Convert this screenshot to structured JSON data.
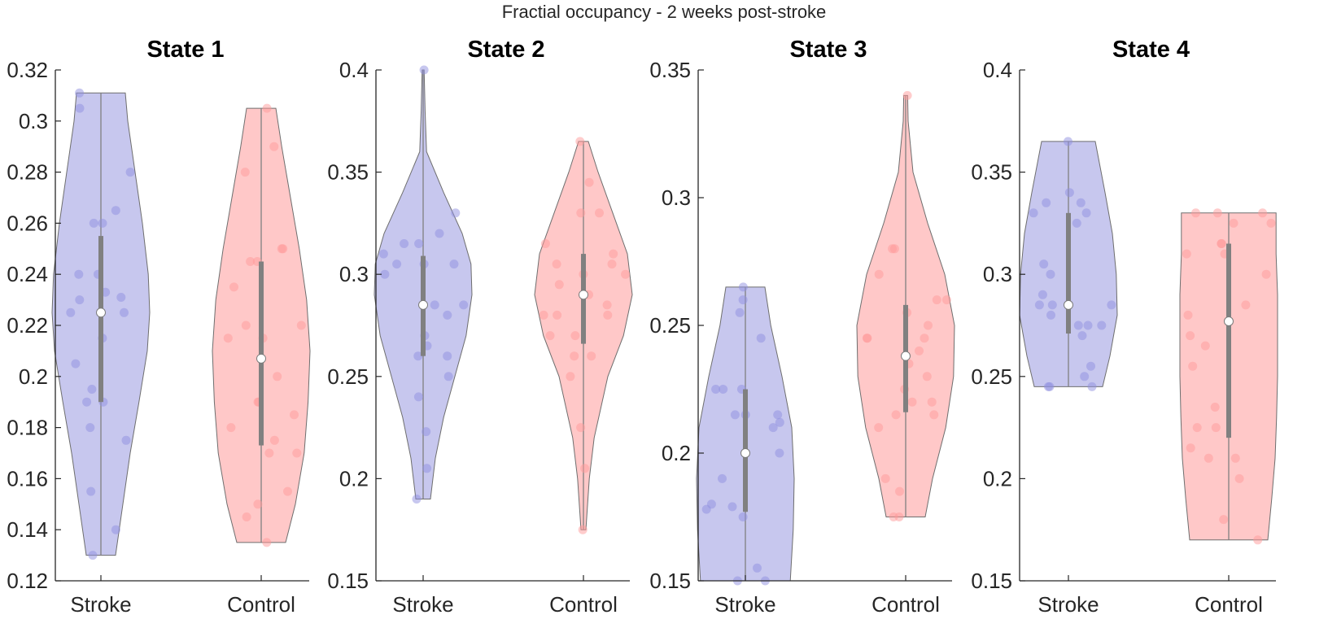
{
  "figure_title": "Fractial occupancy - 2 weeks post-stroke",
  "colors": {
    "stroke_fill": "#c7c7ee",
    "stroke_points": "#8f8fe0",
    "control_fill": "#ffc8c8",
    "control_points": "#ff9a9a",
    "box": "#808080",
    "median": "#ffffff",
    "axis": "#262626"
  },
  "chart_data": [
    {
      "type": "violin",
      "title": "State 1",
      "categories": [
        "Stroke",
        "Control"
      ],
      "ylim": [
        0.12,
        0.32
      ],
      "yticks": [
        "0.12",
        "0.14",
        "0.16",
        "0.18",
        "0.2",
        "0.22",
        "0.24",
        "0.26",
        "0.28",
        "0.3",
        "0.32"
      ],
      "groups": [
        {
          "name": "Stroke",
          "median": 0.225,
          "q1": 0.19,
          "q3": 0.255,
          "min": 0.13,
          "max": 0.311,
          "points": [
            0.311,
            0.305,
            0.28,
            0.265,
            0.26,
            0.26,
            0.24,
            0.24,
            0.233,
            0.231,
            0.23,
            0.225,
            0.225,
            0.215,
            0.205,
            0.195,
            0.19,
            0.19,
            0.18,
            0.175,
            0.155,
            0.14,
            0.13
          ],
          "density": [
            [
              0.13,
              0.3
            ],
            [
              0.15,
              0.45
            ],
            [
              0.17,
              0.6
            ],
            [
              0.19,
              0.78
            ],
            [
              0.21,
              0.95
            ],
            [
              0.225,
              1.0
            ],
            [
              0.24,
              0.97
            ],
            [
              0.26,
              0.85
            ],
            [
              0.28,
              0.7
            ],
            [
              0.3,
              0.55
            ],
            [
              0.311,
              0.5
            ]
          ]
        },
        {
          "name": "Control",
          "median": 0.207,
          "q1": 0.173,
          "q3": 0.245,
          "min": 0.135,
          "max": 0.305,
          "points": [
            0.305,
            0.29,
            0.28,
            0.25,
            0.25,
            0.245,
            0.245,
            0.235,
            0.22,
            0.22,
            0.215,
            0.215,
            0.2,
            0.19,
            0.19,
            0.185,
            0.18,
            0.175,
            0.17,
            0.17,
            0.155,
            0.15,
            0.145,
            0.135
          ],
          "density": [
            [
              0.135,
              0.5
            ],
            [
              0.15,
              0.7
            ],
            [
              0.17,
              0.88
            ],
            [
              0.19,
              0.96
            ],
            [
              0.21,
              1.0
            ],
            [
              0.23,
              0.93
            ],
            [
              0.25,
              0.78
            ],
            [
              0.27,
              0.6
            ],
            [
              0.29,
              0.42
            ],
            [
              0.305,
              0.3
            ]
          ]
        }
      ]
    },
    {
      "type": "violin",
      "title": "State 2",
      "categories": [
        "Stroke",
        "Control"
      ],
      "ylim": [
        0.15,
        0.4
      ],
      "yticks": [
        "0.15",
        "0.2",
        "0.25",
        "0.3",
        "0.35",
        "0.4"
      ],
      "groups": [
        {
          "name": "Stroke",
          "median": 0.285,
          "q1": 0.26,
          "q3": 0.309,
          "min": 0.19,
          "max": 0.4,
          "points": [
            0.4,
            0.33,
            0.32,
            0.315,
            0.315,
            0.31,
            0.305,
            0.305,
            0.305,
            0.3,
            0.285,
            0.285,
            0.28,
            0.27,
            0.265,
            0.26,
            0.26,
            0.25,
            0.24,
            0.223,
            0.205,
            0.19
          ],
          "density": [
            [
              0.19,
              0.15
            ],
            [
              0.21,
              0.25
            ],
            [
              0.23,
              0.42
            ],
            [
              0.25,
              0.65
            ],
            [
              0.27,
              0.88
            ],
            [
              0.29,
              1.0
            ],
            [
              0.305,
              0.98
            ],
            [
              0.32,
              0.8
            ],
            [
              0.34,
              0.42
            ],
            [
              0.36,
              0.07
            ],
            [
              0.38,
              0.04
            ],
            [
              0.4,
              0.02
            ]
          ]
        },
        {
          "name": "Control",
          "median": 0.29,
          "q1": 0.266,
          "q3": 0.31,
          "min": 0.175,
          "max": 0.365,
          "points": [
            0.365,
            0.345,
            0.33,
            0.33,
            0.315,
            0.31,
            0.305,
            0.305,
            0.3,
            0.3,
            0.295,
            0.29,
            0.285,
            0.28,
            0.28,
            0.28,
            0.27,
            0.27,
            0.26,
            0.26,
            0.25,
            0.225,
            0.205,
            0.175
          ],
          "density": [
            [
              0.175,
              0.05
            ],
            [
              0.2,
              0.12
            ],
            [
              0.22,
              0.22
            ],
            [
              0.25,
              0.5
            ],
            [
              0.27,
              0.82
            ],
            [
              0.29,
              1.0
            ],
            [
              0.31,
              0.9
            ],
            [
              0.33,
              0.6
            ],
            [
              0.35,
              0.3
            ],
            [
              0.365,
              0.1
            ]
          ]
        }
      ]
    },
    {
      "type": "violin",
      "title": "State 3",
      "categories": [
        "Stroke",
        "Control"
      ],
      "ylim": [
        0.15,
        0.35
      ],
      "yticks": [
        "0.15",
        "0.2",
        "0.25",
        "0.3",
        "0.35"
      ],
      "groups": [
        {
          "name": "Stroke",
          "median": 0.2,
          "q1": 0.177,
          "q3": 0.225,
          "min": 0.15,
          "max": 0.265,
          "points": [
            0.265,
            0.26,
            0.255,
            0.245,
            0.225,
            0.225,
            0.225,
            0.215,
            0.215,
            0.215,
            0.212,
            0.21,
            0.2,
            0.19,
            0.18,
            0.179,
            0.178,
            0.175,
            0.155,
            0.15,
            0.15
          ],
          "density": [
            [
              0.15,
              0.92
            ],
            [
              0.17,
              0.98
            ],
            [
              0.19,
              1.0
            ],
            [
              0.21,
              0.95
            ],
            [
              0.23,
              0.75
            ],
            [
              0.25,
              0.52
            ],
            [
              0.265,
              0.4
            ]
          ]
        },
        {
          "name": "Control",
          "median": 0.238,
          "q1": 0.216,
          "q3": 0.258,
          "min": 0.175,
          "max": 0.34,
          "points": [
            0.34,
            0.28,
            0.28,
            0.27,
            0.26,
            0.26,
            0.255,
            0.25,
            0.245,
            0.245,
            0.245,
            0.24,
            0.235,
            0.23,
            0.225,
            0.22,
            0.22,
            0.215,
            0.215,
            0.21,
            0.19,
            0.185,
            0.175,
            0.175
          ],
          "density": [
            [
              0.175,
              0.4
            ],
            [
              0.19,
              0.55
            ],
            [
              0.21,
              0.82
            ],
            [
              0.23,
              0.98
            ],
            [
              0.25,
              1.0
            ],
            [
              0.27,
              0.8
            ],
            [
              0.29,
              0.45
            ],
            [
              0.31,
              0.15
            ],
            [
              0.33,
              0.05
            ],
            [
              0.34,
              0.04
            ]
          ]
        }
      ]
    },
    {
      "type": "violin",
      "title": "State 4",
      "categories": [
        "Stroke",
        "Control"
      ],
      "ylim": [
        0.15,
        0.4
      ],
      "yticks": [
        "0.15",
        "0.2",
        "0.25",
        "0.3",
        "0.35",
        "0.4"
      ],
      "groups": [
        {
          "name": "Stroke",
          "median": 0.285,
          "q1": 0.271,
          "q3": 0.33,
          "min": 0.245,
          "max": 0.365,
          "points": [
            0.365,
            0.34,
            0.335,
            0.335,
            0.33,
            0.33,
            0.325,
            0.305,
            0.3,
            0.29,
            0.285,
            0.285,
            0.285,
            0.28,
            0.275,
            0.275,
            0.275,
            0.27,
            0.255,
            0.25,
            0.245,
            0.245,
            0.245
          ],
          "density": [
            [
              0.245,
              0.7
            ],
            [
              0.26,
              0.85
            ],
            [
              0.28,
              1.0
            ],
            [
              0.3,
              0.98
            ],
            [
              0.32,
              0.9
            ],
            [
              0.34,
              0.75
            ],
            [
              0.365,
              0.55
            ]
          ]
        },
        {
          "name": "Control",
          "median": 0.277,
          "q1": 0.22,
          "q3": 0.315,
          "min": 0.17,
          "max": 0.33,
          "points": [
            0.33,
            0.33,
            0.33,
            0.325,
            0.325,
            0.315,
            0.315,
            0.31,
            0.31,
            0.3,
            0.285,
            0.28,
            0.27,
            0.265,
            0.255,
            0.235,
            0.225,
            0.225,
            0.215,
            0.21,
            0.21,
            0.2,
            0.18,
            0.17
          ],
          "density": [
            [
              0.17,
              0.8
            ],
            [
              0.19,
              0.88
            ],
            [
              0.21,
              0.95
            ],
            [
              0.23,
              0.98
            ],
            [
              0.25,
              1.0
            ],
            [
              0.27,
              1.0
            ],
            [
              0.29,
              1.0
            ],
            [
              0.31,
              0.97
            ],
            [
              0.33,
              0.97
            ]
          ]
        }
      ]
    }
  ]
}
